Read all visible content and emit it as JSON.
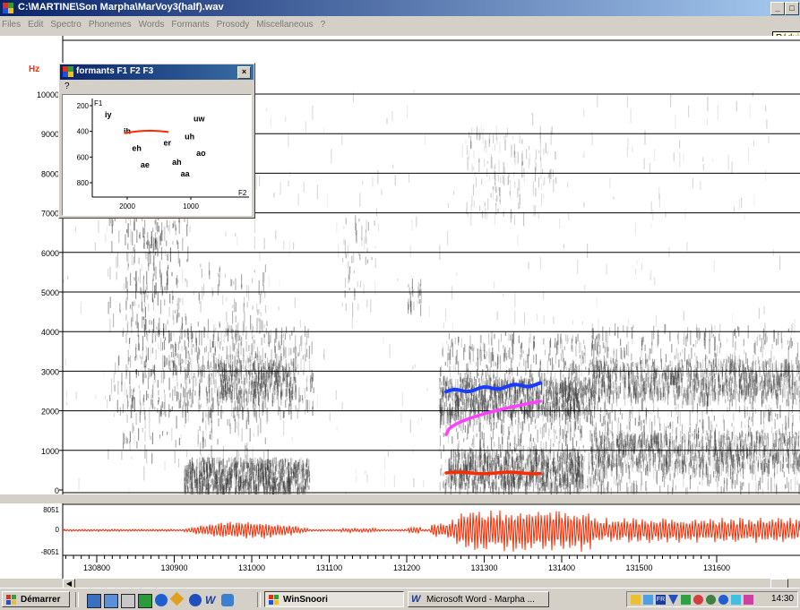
{
  "window": {
    "title": "C:\\MARTINE\\Son Marpha\\MarVoy3(half).wav",
    "min_label": "_",
    "max_label": "□"
  },
  "menu": {
    "items": [
      "Files",
      "Edit",
      "Spectro",
      "Phonemes",
      "Words",
      "Formants",
      "Prosody",
      "Miscellaneous",
      "?"
    ]
  },
  "tooltip": {
    "text": "Réduire"
  },
  "spectrogram": {
    "unit_label": "Hz",
    "freq_ticks": [
      "10000",
      "9000",
      "8000",
      "7000",
      "6000",
      "5000",
      "4000",
      "3000",
      "2000",
      "1000",
      "0"
    ],
    "formant_colors": {
      "F1": "#ff2a00",
      "F2": "#ff40ff",
      "F3": "#1a3cff"
    }
  },
  "waveform": {
    "y_ticks": [
      "8051",
      "0",
      "-8051"
    ],
    "color": "#ff2a00"
  },
  "time_axis": {
    "ticks": [
      "130800",
      "130900",
      "131000",
      "131100",
      "131200",
      "131300",
      "131400",
      "131500",
      "131600"
    ]
  },
  "formant_window": {
    "title": "formants F1 F2 F3",
    "menu": "?",
    "close_label": "×",
    "f1_label": "F1",
    "f2_label": "F2",
    "f1_ticks": [
      "200",
      "400",
      "600",
      "800"
    ],
    "f2_ticks": [
      "2000",
      "1000"
    ],
    "vowels": [
      {
        "label": "iy",
        "f2": 2300,
        "f1": 270
      },
      {
        "label": "uw",
        "f2": 870,
        "f1": 300
      },
      {
        "label": "ih",
        "f2": 2000,
        "f1": 400
      },
      {
        "label": "uh",
        "f2": 1020,
        "f1": 440
      },
      {
        "label": "er",
        "f2": 1370,
        "f1": 490
      },
      {
        "label": "eh",
        "f2": 1850,
        "f1": 530
      },
      {
        "label": "ao",
        "f2": 840,
        "f1": 570
      },
      {
        "label": "ah",
        "f2": 1220,
        "f1": 640
      },
      {
        "label": "ae",
        "f2": 1720,
        "f1": 660
      },
      {
        "label": "aa",
        "f2": 1090,
        "f1": 730
      }
    ],
    "trajectory_color": "#ff2a00"
  },
  "taskbar": {
    "start_label": "Démarrer",
    "buttons": [
      {
        "label": "WinSnoori",
        "active": true
      },
      {
        "label": "Microsoft Word - Marpha ...",
        "active": false
      }
    ],
    "clock": "14:30"
  }
}
